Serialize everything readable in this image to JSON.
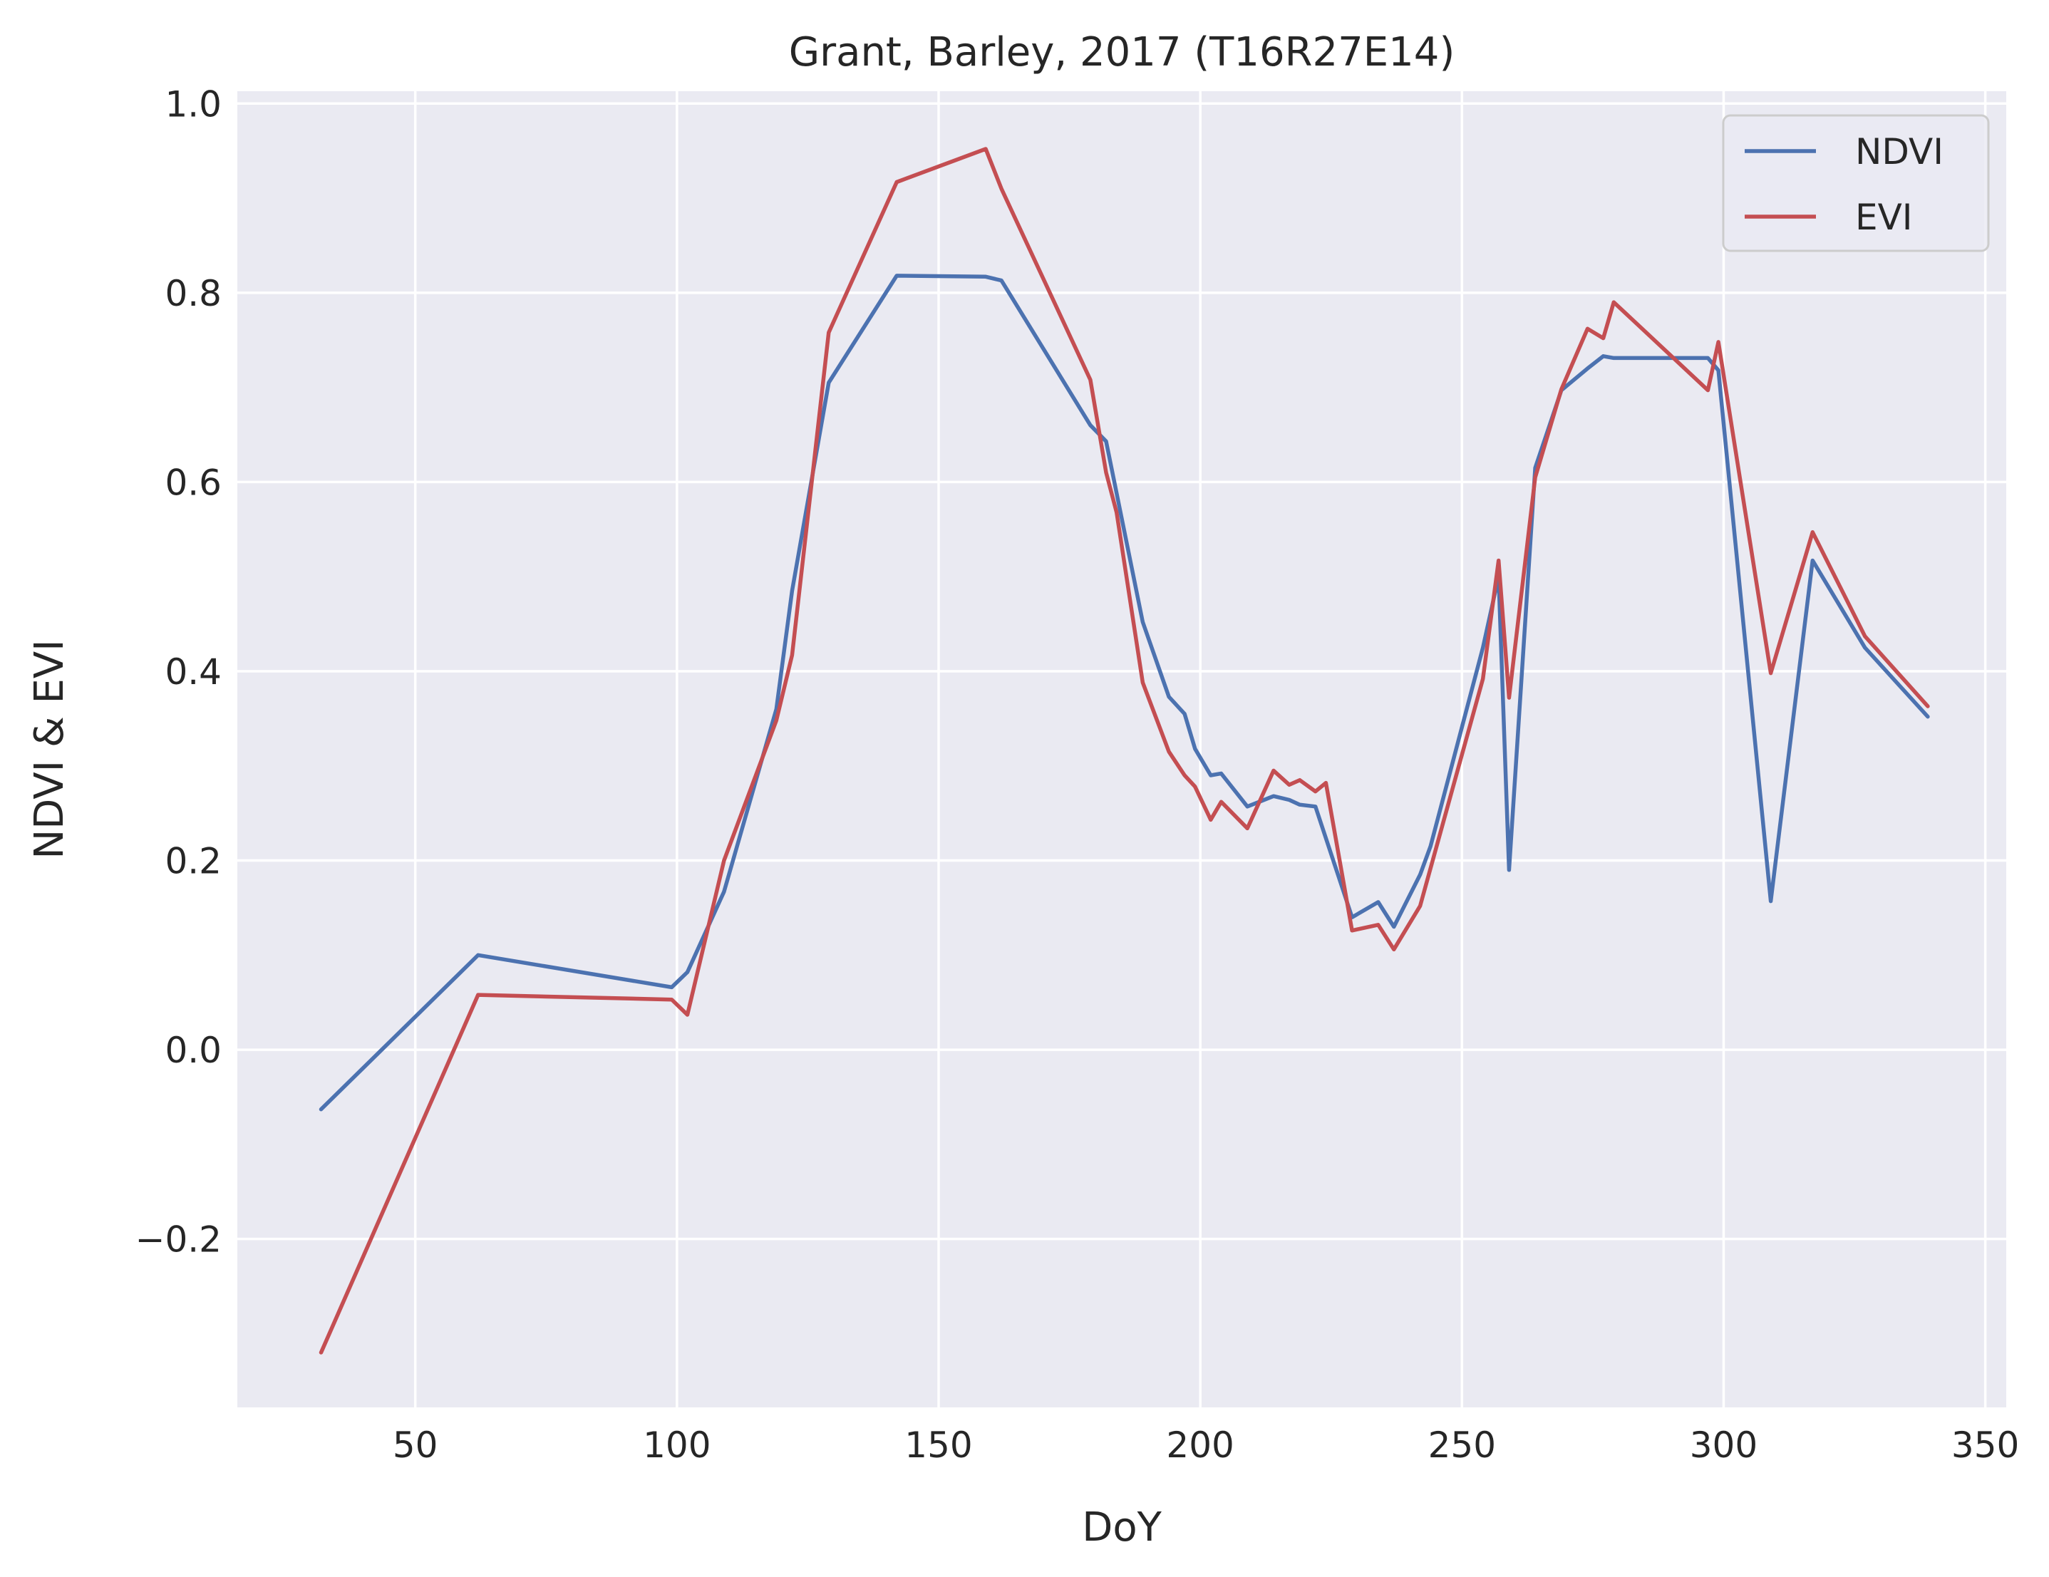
{
  "colors": {
    "plot_bg": "#eaeaf2",
    "grid": "#ffffff",
    "ndvi": "#4c72b0",
    "evi": "#c44e52",
    "text": "#262626"
  },
  "chart_data": {
    "type": "line",
    "title": "Grant, Barley, 2017 (T16R27E14)",
    "xlabel": "DoY",
    "ylabel": "NDVI & EVI",
    "xlim": [
      16,
      354
    ],
    "ylim": [
      -0.378,
      1.013
    ],
    "xticks": [
      50,
      100,
      150,
      200,
      250,
      300,
      350
    ],
    "yticks": [
      -0.2,
      0.0,
      0.2,
      0.4,
      0.6,
      0.8,
      1.0
    ],
    "xtick_labels": [
      "50",
      "100",
      "150",
      "200",
      "250",
      "300",
      "350"
    ],
    "ytick_labels": [
      "−0.2",
      "0.0",
      "0.2",
      "0.4",
      "0.6",
      "0.8",
      "1.0"
    ],
    "grid": true,
    "legend_position": "top-right",
    "series": [
      {
        "name": "NDVI",
        "color": "#4c72b0",
        "points": [
          [
            32,
            -0.063
          ],
          [
            62,
            0.1
          ],
          [
            99,
            0.066
          ],
          [
            102,
            0.082
          ],
          [
            109,
            0.167
          ],
          [
            119,
            0.36
          ],
          [
            122,
            0.485
          ],
          [
            129,
            0.705
          ],
          [
            142,
            0.818
          ],
          [
            159,
            0.817
          ],
          [
            162,
            0.813
          ],
          [
            179,
            0.66
          ],
          [
            182,
            0.643
          ],
          [
            189,
            0.452
          ],
          [
            194,
            0.373
          ],
          [
            197,
            0.355
          ],
          [
            199,
            0.318
          ],
          [
            202,
            0.29
          ],
          [
            204,
            0.292
          ],
          [
            209,
            0.257
          ],
          [
            214,
            0.268
          ],
          [
            217,
            0.264
          ],
          [
            219,
            0.259
          ],
          [
            222,
            0.257
          ],
          [
            229,
            0.14
          ],
          [
            234,
            0.156
          ],
          [
            237,
            0.13
          ],
          [
            242,
            0.185
          ],
          [
            244,
            0.215
          ],
          [
            254,
            0.425
          ],
          [
            257,
            0.5
          ],
          [
            259,
            0.19
          ],
          [
            264,
            0.615
          ],
          [
            269,
            0.697
          ],
          [
            274,
            0.72
          ],
          [
            277,
            0.733
          ],
          [
            279,
            0.731
          ],
          [
            297,
            0.731
          ],
          [
            299,
            0.718
          ],
          [
            309,
            0.157
          ],
          [
            317,
            0.517
          ],
          [
            327,
            0.425
          ],
          [
            339,
            0.352
          ]
        ]
      },
      {
        "name": "EVI",
        "color": "#c44e52",
        "points": [
          [
            32,
            -0.32
          ],
          [
            62,
            0.058
          ],
          [
            99,
            0.053
          ],
          [
            102,
            0.037
          ],
          [
            109,
            0.2
          ],
          [
            119,
            0.348
          ],
          [
            122,
            0.417
          ],
          [
            129,
            0.758
          ],
          [
            142,
            0.917
          ],
          [
            159,
            0.952
          ],
          [
            162,
            0.91
          ],
          [
            179,
            0.708
          ],
          [
            182,
            0.61
          ],
          [
            184,
            0.568
          ],
          [
            189,
            0.388
          ],
          [
            194,
            0.315
          ],
          [
            197,
            0.29
          ],
          [
            199,
            0.278
          ],
          [
            202,
            0.243
          ],
          [
            204,
            0.262
          ],
          [
            209,
            0.234
          ],
          [
            214,
            0.295
          ],
          [
            217,
            0.28
          ],
          [
            219,
            0.285
          ],
          [
            222,
            0.273
          ],
          [
            224,
            0.282
          ],
          [
            229,
            0.126
          ],
          [
            234,
            0.132
          ],
          [
            237,
            0.106
          ],
          [
            242,
            0.152
          ],
          [
            254,
            0.392
          ],
          [
            257,
            0.517
          ],
          [
            259,
            0.372
          ],
          [
            264,
            0.605
          ],
          [
            269,
            0.698
          ],
          [
            274,
            0.762
          ],
          [
            277,
            0.752
          ],
          [
            279,
            0.79
          ],
          [
            297,
            0.697
          ],
          [
            299,
            0.748
          ],
          [
            309,
            0.398
          ],
          [
            317,
            0.547
          ],
          [
            327,
            0.437
          ],
          [
            339,
            0.363
          ]
        ]
      }
    ]
  }
}
